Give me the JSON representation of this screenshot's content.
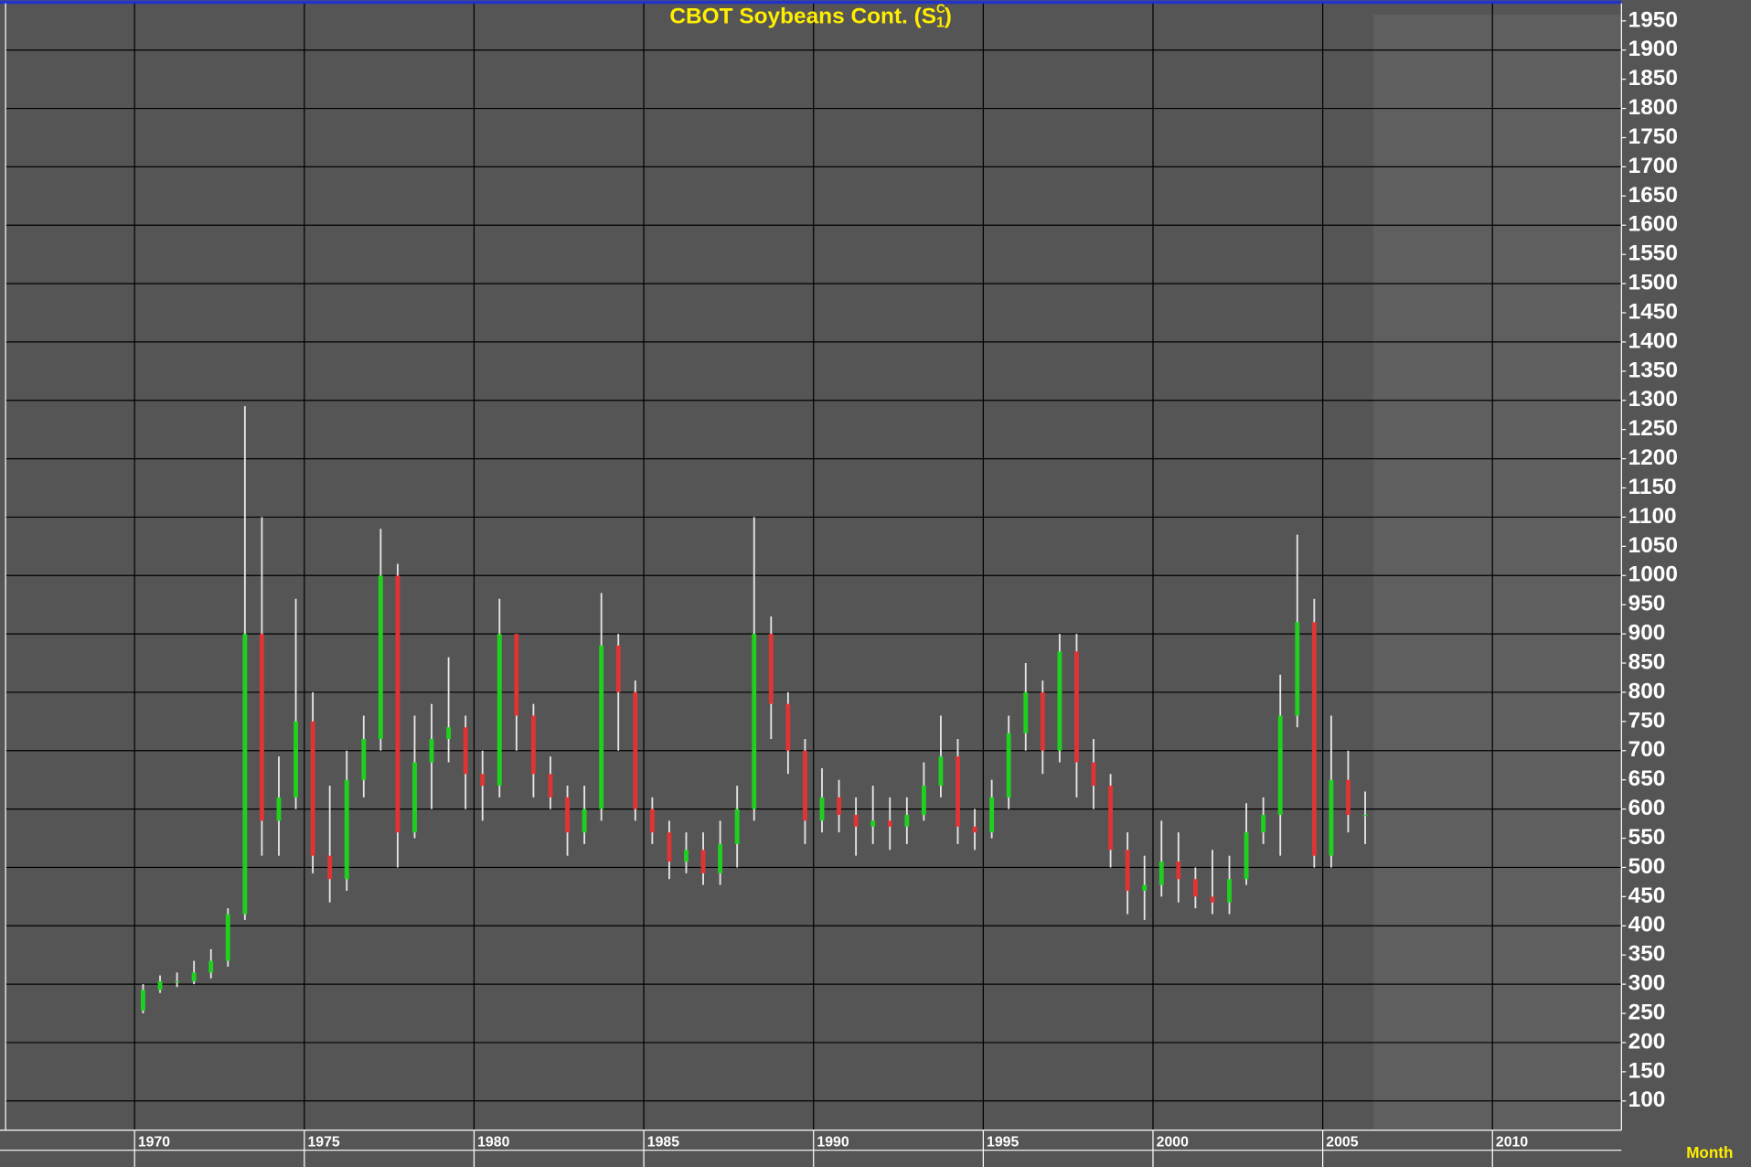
{
  "chart_data": {
    "type": "ohlc",
    "title": {
      "main": "CBOT Soybeans Cont. (S",
      "sup": "C",
      "sub": "1",
      "close": ")"
    },
    "period_label": "Month",
    "x": [
      1970.0,
      1970.5,
      1971.0,
      1971.5,
      1972.0,
      1972.5,
      1973.0,
      1973.5,
      1974.0,
      1974.5,
      1975.0,
      1975.5,
      1976.0,
      1976.5,
      1977.0,
      1977.5,
      1978.0,
      1978.5,
      1979.0,
      1979.5,
      1980.0,
      1980.5,
      1981.0,
      1981.5,
      1982.0,
      1982.5,
      1983.0,
      1983.5,
      1984.0,
      1984.5,
      1985.0,
      1985.5,
      1986.0,
      1986.5,
      1987.0,
      1987.5,
      1988.0,
      1988.5,
      1989.0,
      1989.5,
      1990.0,
      1990.5,
      1991.0,
      1991.5,
      1992.0,
      1992.5,
      1993.0,
      1993.5,
      1994.0,
      1994.5,
      1995.0,
      1995.5,
      1996.0,
      1996.5,
      1997.0,
      1997.5,
      1998.0,
      1998.5,
      1999.0,
      1999.5,
      2000.0,
      2000.5,
      2001.0,
      2001.5,
      2002.0,
      2002.5,
      2003.0,
      2003.5,
      2004.0,
      2004.5,
      2005.0,
      2005.5,
      2006.0
    ],
    "open": [
      255,
      290,
      305,
      305,
      320,
      340,
      420,
      900,
      580,
      620,
      750,
      520,
      480,
      650,
      720,
      1000,
      560,
      680,
      720,
      740,
      660,
      640,
      900,
      760,
      660,
      620,
      560,
      600,
      880,
      800,
      600,
      560,
      510,
      530,
      490,
      540,
      600,
      900,
      780,
      700,
      580,
      620,
      590,
      570,
      580,
      570,
      590,
      640,
      690,
      570,
      560,
      620,
      730,
      800,
      700,
      870,
      680,
      640,
      530,
      460,
      470,
      510,
      480,
      450,
      440,
      480,
      560,
      590,
      760,
      920,
      520,
      650,
      590
    ],
    "high": [
      300,
      315,
      320,
      340,
      360,
      430,
      1290,
      1100,
      690,
      960,
      800,
      640,
      700,
      760,
      1080,
      1020,
      760,
      780,
      860,
      760,
      700,
      960,
      900,
      780,
      690,
      640,
      640,
      970,
      900,
      820,
      620,
      580,
      560,
      560,
      580,
      640,
      1100,
      930,
      800,
      720,
      670,
      650,
      620,
      640,
      620,
      620,
      680,
      760,
      720,
      600,
      650,
      760,
      850,
      820,
      900,
      900,
      720,
      660,
      560,
      520,
      580,
      560,
      500,
      530,
      520,
      610,
      620,
      830,
      1070,
      960,
      760,
      700,
      630
    ],
    "low": [
      250,
      285,
      295,
      300,
      310,
      330,
      410,
      520,
      520,
      600,
      490,
      440,
      460,
      620,
      700,
      500,
      550,
      600,
      680,
      600,
      580,
      620,
      700,
      620,
      600,
      520,
      540,
      580,
      700,
      580,
      540,
      480,
      490,
      470,
      470,
      500,
      580,
      720,
      660,
      540,
      560,
      560,
      520,
      540,
      530,
      540,
      580,
      620,
      540,
      530,
      550,
      600,
      700,
      660,
      680,
      620,
      600,
      500,
      420,
      410,
      450,
      440,
      430,
      420,
      420,
      470,
      540,
      520,
      740,
      500,
      500,
      560,
      540
    ],
    "close": [
      290,
      305,
      305,
      320,
      340,
      420,
      900,
      580,
      620,
      750,
      520,
      480,
      650,
      720,
      1000,
      560,
      680,
      720,
      740,
      660,
      640,
      900,
      760,
      660,
      620,
      560,
      600,
      880,
      800,
      600,
      560,
      510,
      530,
      490,
      540,
      600,
      900,
      780,
      700,
      580,
      620,
      590,
      570,
      580,
      570,
      590,
      640,
      690,
      570,
      560,
      620,
      730,
      800,
      700,
      870,
      680,
      640,
      530,
      460,
      470,
      510,
      480,
      450,
      440,
      480,
      560,
      590,
      760,
      920,
      520,
      650,
      590,
      590
    ],
    "up_color": "#1fd01f",
    "down_color": "#e03434",
    "wick_color": "#e6e6e6",
    "xlim": [
      1966.2,
      2013.8
    ],
    "xticks": [
      1970,
      1975,
      1980,
      1985,
      1990,
      1995,
      2000,
      2005,
      2010
    ],
    "ylim": [
      50,
      1980
    ],
    "yticks": [
      100,
      150,
      200,
      250,
      300,
      350,
      400,
      450,
      500,
      550,
      600,
      650,
      700,
      750,
      800,
      850,
      900,
      950,
      1000,
      1050,
      1100,
      1150,
      1200,
      1250,
      1300,
      1350,
      1400,
      1450,
      1500,
      1550,
      1600,
      1650,
      1700,
      1750,
      1800,
      1850,
      1900,
      1950
    ],
    "ygrid": [
      100,
      200,
      300,
      400,
      500,
      600,
      700,
      800,
      900,
      1000,
      1100,
      1200,
      1300,
      1400,
      1500,
      1600,
      1700,
      1800,
      1900
    ],
    "grid": true
  }
}
